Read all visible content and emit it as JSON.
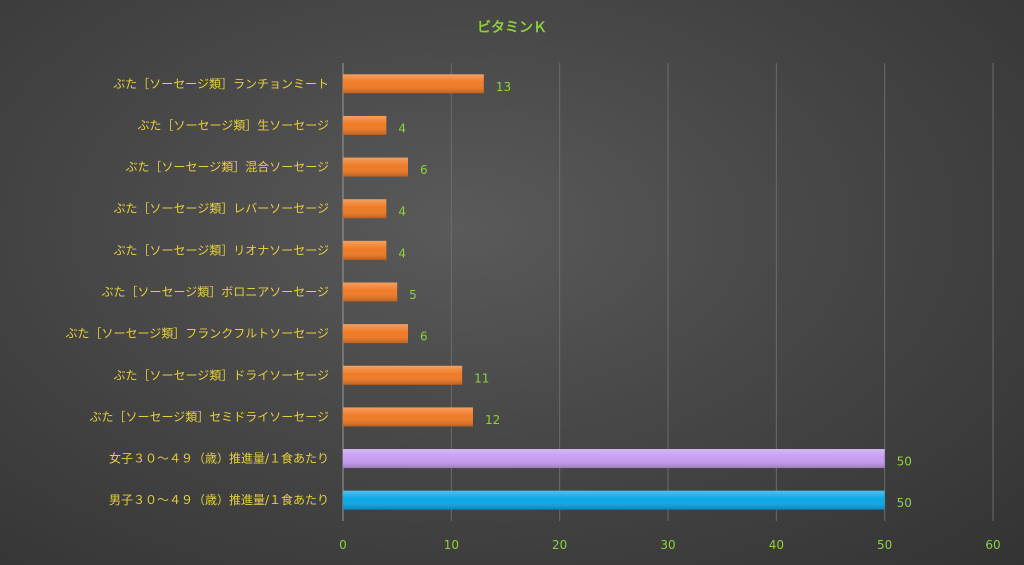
{
  "chart_data": {
    "type": "bar",
    "orientation": "horizontal",
    "title": "ビタミンＫ",
    "categories": [
      "ぶた［ソーセージ類］ランチョンミート",
      "ぶた［ソーセージ類］生ソーセージ",
      "ぶた［ソーセージ類］混合ソーセージ",
      "ぶた［ソーセージ類］レバーソーセージ",
      "ぶた［ソーセージ類］リオナソーセージ",
      "ぶた［ソーセージ類］ボロニアソーセージ",
      "ぶた［ソーセージ類］フランクフルトソーセージ",
      "ぶた［ソーセージ類］ドライソーセージ",
      "ぶた［ソーセージ類］セミドライソーセージ",
      "女子３０～４９（歳）推進量/１食あたり",
      "男子３０～４９（歳）推進量/１食あたり"
    ],
    "values": [
      13,
      4,
      6,
      4,
      4,
      5,
      6,
      11,
      12,
      50,
      50
    ],
    "data_labels": [
      "13",
      "4",
      "6",
      "4",
      "4",
      "5",
      "6",
      "11",
      "12",
      "50",
      "50"
    ],
    "bar_colors": [
      "#f07a24",
      "#f07a24",
      "#f07a24",
      "#f07a24",
      "#f07a24",
      "#f07a24",
      "#f07a24",
      "#f07a24",
      "#f07a24",
      "#c79cf2",
      "#0aa8e6"
    ],
    "xlim": [
      0,
      60
    ],
    "xticks": [
      "0",
      "10",
      "20",
      "30",
      "40",
      "50",
      "60"
    ],
    "grid": "vertical",
    "legend": "none"
  },
  "colors": {
    "title": "#8fcf3c",
    "category_label": "#e6cf3c",
    "tick_label": "#8fcf3c",
    "data_label": "#8fcf3c",
    "grid": "#6c6c6c",
    "axis": "#9a9a9a"
  }
}
